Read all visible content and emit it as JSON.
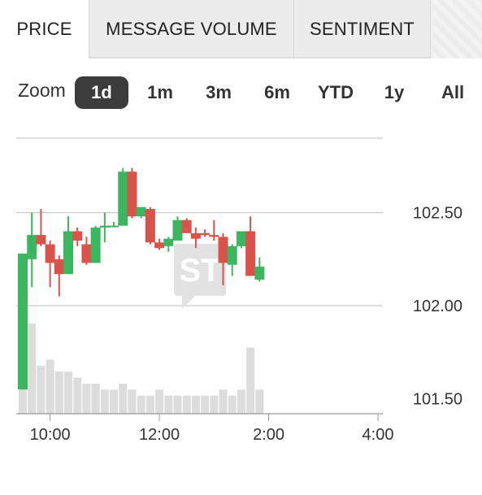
{
  "tabs": [
    {
      "label": "PRICE",
      "active": true
    },
    {
      "label": "MESSAGE VOLUME",
      "active": false
    },
    {
      "label": "SENTIMENT",
      "active": false
    }
  ],
  "zoom": {
    "label": "Zoom",
    "options": [
      "1d",
      "1m",
      "3m",
      "6m",
      "YTD",
      "1y",
      "All"
    ],
    "selected": "1d"
  },
  "watermark": "ST",
  "colors": {
    "up": "#3cb561",
    "down": "#d9534a",
    "volume": "#dcdcdc",
    "grid": "#bdbdbd"
  },
  "chart_data": {
    "type": "candlestick",
    "y_axis": {
      "ticks": [
        101.5,
        102.0,
        102.5
      ],
      "tick_labels": [
        "101.50",
        "102.00",
        "102.50"
      ],
      "range": [
        101.42,
        102.9
      ]
    },
    "x_axis": {
      "ticks": [
        "10:00",
        "12:00",
        "2:00",
        "4:00"
      ],
      "range": [
        "9:30",
        "4:00"
      ]
    },
    "grid": true,
    "candles": [
      {
        "t": "9:30",
        "o": 101.55,
        "h": 102.28,
        "l": 101.55,
        "c": 102.28,
        "v": 4
      },
      {
        "t": "9:40",
        "o": 102.25,
        "h": 102.5,
        "l": 102.1,
        "c": 102.38,
        "v": 15
      },
      {
        "t": "9:50",
        "o": 102.38,
        "h": 102.52,
        "l": 102.32,
        "c": 102.33,
        "v": 8
      },
      {
        "t": "10:00",
        "o": 102.33,
        "h": 102.35,
        "l": 102.1,
        "c": 102.23,
        "v": 9
      },
      {
        "t": "10:10",
        "o": 102.25,
        "h": 102.27,
        "l": 102.05,
        "c": 102.17,
        "v": 7
      },
      {
        "t": "10:20",
        "o": 102.17,
        "h": 102.48,
        "l": 102.17,
        "c": 102.4,
        "v": 7
      },
      {
        "t": "10:30",
        "o": 102.4,
        "h": 102.42,
        "l": 102.32,
        "c": 102.35,
        "v": 6
      },
      {
        "t": "10:40",
        "o": 102.33,
        "h": 102.37,
        "l": 102.22,
        "c": 102.23,
        "v": 5
      },
      {
        "t": "10:50",
        "o": 102.23,
        "h": 102.43,
        "l": 102.23,
        "c": 102.42,
        "v": 5
      },
      {
        "t": "11:00",
        "o": 102.42,
        "h": 102.5,
        "l": 102.34,
        "c": 102.43,
        "v": 4
      },
      {
        "t": "11:10",
        "o": 102.43,
        "h": 102.45,
        "l": 102.43,
        "c": 102.43,
        "v": 4
      },
      {
        "t": "11:20",
        "o": 102.43,
        "h": 102.74,
        "l": 102.43,
        "c": 102.72,
        "v": 5
      },
      {
        "t": "11:30",
        "o": 102.72,
        "h": 102.74,
        "l": 102.47,
        "c": 102.48,
        "v": 4
      },
      {
        "t": "11:40",
        "o": 102.48,
        "h": 102.53,
        "l": 102.47,
        "c": 102.53,
        "v": 3
      },
      {
        "t": "11:50",
        "o": 102.52,
        "h": 102.53,
        "l": 102.33,
        "c": 102.34,
        "v": 3
      },
      {
        "t": "12:00",
        "o": 102.34,
        "h": 102.36,
        "l": 102.3,
        "c": 102.31,
        "v": 4
      },
      {
        "t": "12:10",
        "o": 102.32,
        "h": 102.37,
        "l": 102.29,
        "c": 102.36,
        "v": 3
      },
      {
        "t": "12:20",
        "o": 102.35,
        "h": 102.48,
        "l": 102.35,
        "c": 102.46,
        "v": 3
      },
      {
        "t": "12:30",
        "o": 102.46,
        "h": 102.47,
        "l": 102.39,
        "c": 102.39,
        "v": 3
      },
      {
        "t": "12:40",
        "o": 102.39,
        "h": 102.42,
        "l": 102.31,
        "c": 102.36,
        "v": 3
      },
      {
        "t": "12:50",
        "o": 102.39,
        "h": 102.41,
        "l": 102.37,
        "c": 102.38,
        "v": 3
      },
      {
        "t": "1:00",
        "o": 102.38,
        "h": 102.46,
        "l": 102.35,
        "c": 102.37,
        "v": 3
      },
      {
        "t": "1:10",
        "o": 102.37,
        "h": 102.39,
        "l": 102.11,
        "c": 102.23,
        "v": 4
      },
      {
        "t": "1:20",
        "o": 102.22,
        "h": 102.33,
        "l": 102.16,
        "c": 102.32,
        "v": 3
      },
      {
        "t": "1:30",
        "o": 102.32,
        "h": 102.4,
        "l": 102.31,
        "c": 102.4,
        "v": 4
      },
      {
        "t": "1:40",
        "o": 102.4,
        "h": 102.48,
        "l": 102.16,
        "c": 102.16,
        "v": 11
      },
      {
        "t": "1:50",
        "o": 102.14,
        "h": 102.26,
        "l": 102.13,
        "c": 102.21,
        "v": 4
      }
    ]
  }
}
